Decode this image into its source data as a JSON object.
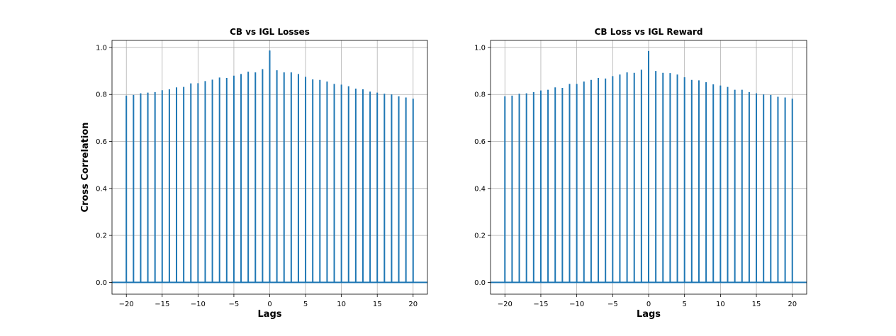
{
  "chart_data": [
    {
      "type": "bar",
      "title": "CB vs IGL Losses",
      "xlabel": "Lags",
      "ylabel": "Cross Correlation",
      "xlim": [
        -22,
        22
      ],
      "ylim": [
        -0.05,
        1.03
      ],
      "xticks": [
        -20,
        -15,
        -10,
        -5,
        0,
        5,
        10,
        15,
        20
      ],
      "xtick_labels": [
        "−20",
        "−15",
        "−10",
        "−5",
        "0",
        "5",
        "10",
        "15",
        "20"
      ],
      "yticks": [
        0.0,
        0.2,
        0.4,
        0.6,
        0.8,
        1.0
      ],
      "ytick_labels": [
        "0.0",
        "0.2",
        "0.4",
        "0.6",
        "0.8",
        "1.0"
      ],
      "grid": true,
      "color": "#1f77b4",
      "x": [
        -20,
        -19,
        -18,
        -17,
        -16,
        -15,
        -14,
        -13,
        -12,
        -11,
        -10,
        -9,
        -8,
        -7,
        -6,
        -5,
        -4,
        -3,
        -2,
        -1,
        0,
        1,
        2,
        3,
        4,
        5,
        6,
        7,
        8,
        9,
        10,
        11,
        12,
        13,
        14,
        15,
        16,
        17,
        18,
        19,
        20
      ],
      "values": [
        0.795,
        0.798,
        0.805,
        0.808,
        0.81,
        0.818,
        0.822,
        0.83,
        0.832,
        0.847,
        0.848,
        0.857,
        0.863,
        0.872,
        0.87,
        0.88,
        0.887,
        0.897,
        0.894,
        0.908,
        0.987,
        0.903,
        0.894,
        0.894,
        0.887,
        0.875,
        0.864,
        0.862,
        0.855,
        0.845,
        0.842,
        0.835,
        0.825,
        0.822,
        0.812,
        0.808,
        0.803,
        0.8,
        0.792,
        0.787,
        0.782
      ]
    },
    {
      "type": "bar",
      "title": "CB Loss vs IGL Reward",
      "xlabel": "Lags",
      "ylabel": "",
      "xlim": [
        -22,
        22
      ],
      "ylim": [
        -0.05,
        1.03
      ],
      "xticks": [
        -20,
        -15,
        -10,
        -5,
        0,
        5,
        10,
        15,
        20
      ],
      "xtick_labels": [
        "−20",
        "−15",
        "−10",
        "−5",
        "0",
        "5",
        "10",
        "15",
        "20"
      ],
      "yticks": [
        0.0,
        0.2,
        0.4,
        0.6,
        0.8,
        1.0
      ],
      "ytick_labels": [
        "0.0",
        "0.2",
        "0.4",
        "0.6",
        "0.8",
        "1.0"
      ],
      "grid": true,
      "color": "#1f77b4",
      "x": [
        -20,
        -19,
        -18,
        -17,
        -16,
        -15,
        -14,
        -13,
        -12,
        -11,
        -10,
        -9,
        -8,
        -7,
        -6,
        -5,
        -4,
        -3,
        -2,
        -1,
        0,
        1,
        2,
        3,
        4,
        5,
        6,
        7,
        8,
        9,
        10,
        11,
        12,
        13,
        14,
        15,
        16,
        17,
        18,
        19,
        20
      ],
      "values": [
        0.792,
        0.795,
        0.803,
        0.805,
        0.81,
        0.817,
        0.82,
        0.83,
        0.828,
        0.845,
        0.845,
        0.855,
        0.862,
        0.87,
        0.868,
        0.878,
        0.885,
        0.894,
        0.892,
        0.905,
        0.985,
        0.9,
        0.892,
        0.891,
        0.885,
        0.873,
        0.862,
        0.86,
        0.852,
        0.843,
        0.838,
        0.832,
        0.82,
        0.82,
        0.81,
        0.805,
        0.8,
        0.798,
        0.79,
        0.787,
        0.782
      ]
    }
  ]
}
